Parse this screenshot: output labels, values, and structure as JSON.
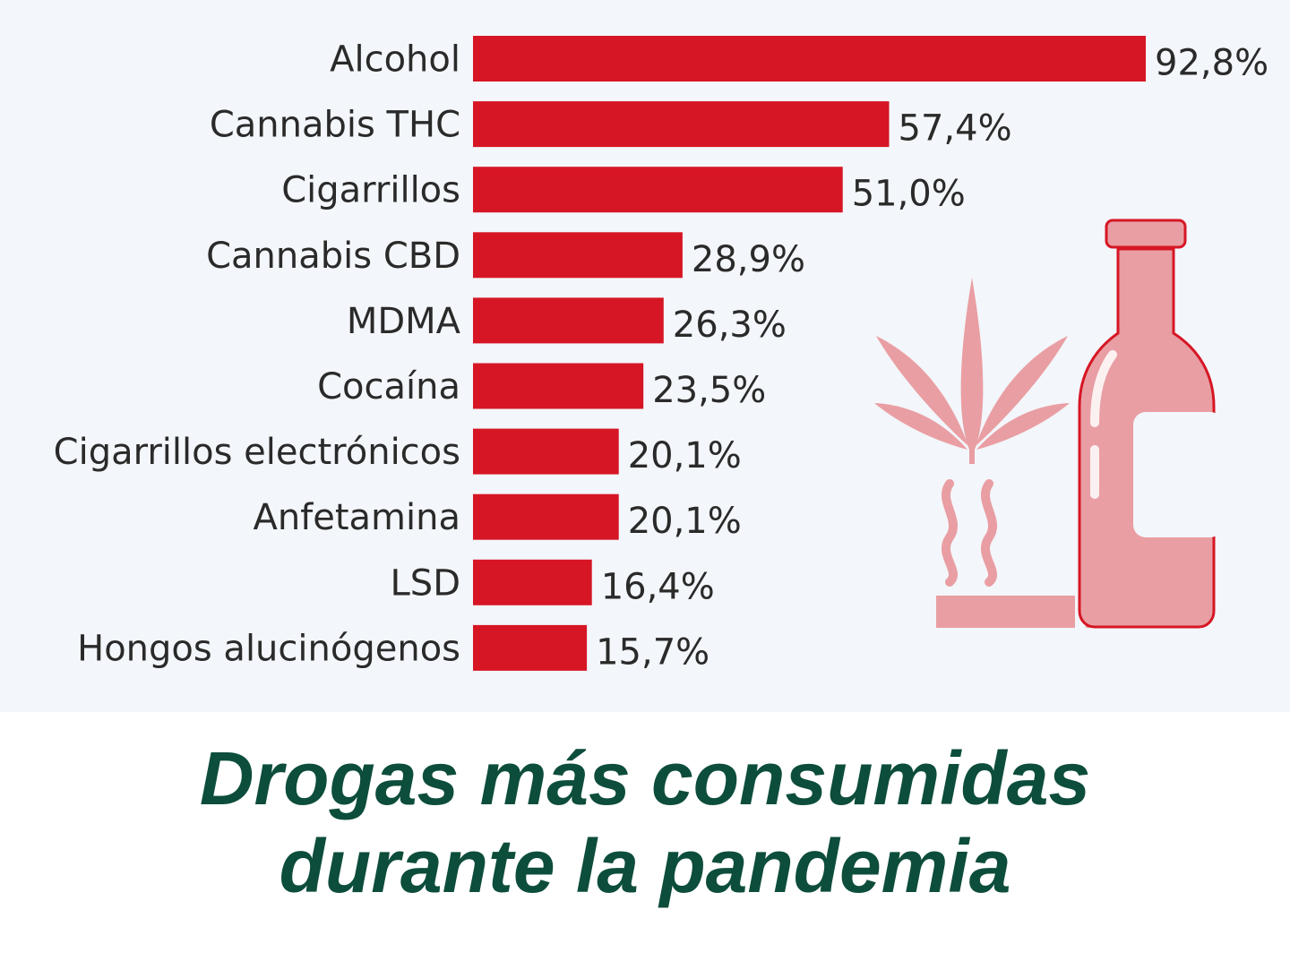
{
  "chart_data": {
    "type": "bar",
    "orientation": "horizontal",
    "title": "Drogas más consumidas durante la pandemia",
    "title_lines": [
      "Drogas más consumidas",
      "durante la pandemia"
    ],
    "categories": [
      "Alcohol",
      "Cannabis THC",
      "Cigarrillos",
      "Cannabis CBD",
      "MDMA",
      "Cocaína",
      "Cigarrillos electrónicos",
      "Anfetamina",
      "LSD",
      "Hongos alucinógenos"
    ],
    "values": [
      92.8,
      57.4,
      51.0,
      28.9,
      26.3,
      23.5,
      20.1,
      20.1,
      16.4,
      15.7
    ],
    "value_labels": [
      "92,8%",
      "57,4%",
      "51,0%",
      "28,9%",
      "26,3%",
      "23,5%",
      "20,1%",
      "20,1%",
      "16,4%",
      "15,7%"
    ],
    "unit": "%",
    "xlim": [
      0,
      92.8
    ],
    "grid": false,
    "legend": "none",
    "bar_color": "#d61624",
    "illustration_color": "#e99ea3",
    "title_color": "#0d4d3b"
  }
}
